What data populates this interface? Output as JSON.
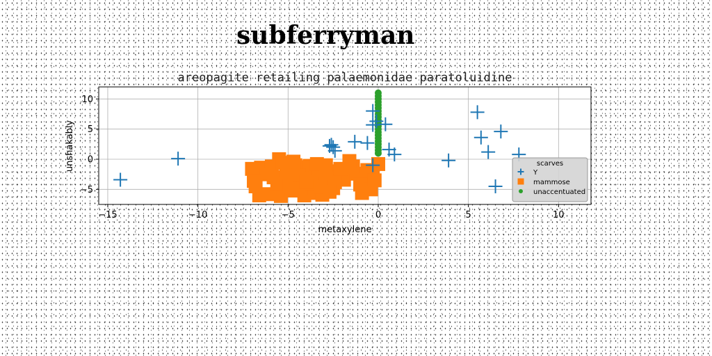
{
  "page": {
    "title": "subferryman"
  },
  "chart_data": {
    "type": "scatter",
    "title": "areopagite retailing palaemonidae paratoluidine",
    "xlabel": "metaxylene",
    "ylabel": "unshakably",
    "xlim": [
      -15.5,
      11.8
    ],
    "ylim": [
      -7.5,
      12
    ],
    "xticks": [
      -15,
      -10,
      -5,
      0,
      5,
      10
    ],
    "yticks": [
      -5,
      0,
      5,
      10
    ],
    "grid": true,
    "legend": {
      "title": "scarves",
      "placement": "lower-right"
    },
    "series": [
      {
        "name": "Y",
        "marker": "plus",
        "color": "#1f77b4",
        "x": [
          -14.3,
          -11.1,
          -2.6,
          -2.5,
          -2.7,
          -2.4,
          -1.3,
          -0.6,
          -0.3,
          -0.3,
          -0.1,
          0.4,
          0.6,
          0.9,
          3.9,
          5.5,
          5.7,
          6.1,
          6.8,
          7.8,
          6.5,
          -0.3
        ],
        "y": [
          -3.4,
          0.1,
          2.4,
          2.0,
          2.2,
          1.4,
          2.9,
          2.7,
          5.7,
          8.0,
          6.3,
          5.8,
          1.6,
          0.8,
          -0.2,
          7.8,
          3.6,
          1.2,
          4.6,
          0.8,
          -4.5,
          -1.0
        ]
      },
      {
        "name": "mammose",
        "marker": "square",
        "color": "#ff7f0e",
        "x": [
          -7.0,
          -6.5,
          -6.8,
          -5.9,
          -5.5,
          -5.0,
          -4.6,
          -4.2,
          -3.8,
          -3.5,
          -3.0,
          -2.6,
          -2.2,
          -1.9,
          -6.2,
          -5.8,
          -5.1,
          -4.4,
          -3.9,
          -3.3,
          -2.8,
          -2.4,
          -1.2,
          -0.8,
          -0.3,
          0.0,
          -6.6,
          -6.1,
          -5.4,
          -4.8,
          -4.1,
          -3.6,
          -3.1,
          -2.5,
          -1.0,
          -0.4,
          -5.6,
          -4.9,
          -4.3,
          -3.7,
          -3.2,
          -2.7,
          -2.1,
          -0.6,
          -0.2,
          -1.4,
          -5.3,
          -4.7,
          -4.0,
          -3.4,
          -2.9,
          -6.9,
          -0.9,
          -1.6
        ],
        "y": [
          -1.6,
          -1.4,
          -4.5,
          -1.2,
          0.0,
          -1.5,
          -1.0,
          -1.3,
          -1.1,
          -1.5,
          -1.8,
          -2.0,
          -2.6,
          -3.4,
          -2.5,
          -3.0,
          -2.2,
          -2.7,
          -3.2,
          -2.6,
          -3.1,
          -3.8,
          -2.4,
          -3.0,
          -2.2,
          -0.8,
          -6.0,
          -5.8,
          -6.1,
          -5.2,
          -6.0,
          -5.6,
          -5.9,
          -4.8,
          -4.2,
          -5.0,
          -4.1,
          -4.4,
          -4.9,
          -4.0,
          -4.6,
          -5.4,
          -1.6,
          -1.8,
          -3.5,
          -1.2,
          -0.6,
          -0.4,
          -3.8,
          -0.8,
          -1.0,
          -3.6,
          -5.6,
          -0.3
        ]
      },
      {
        "name": "unaccentuated",
        "marker": "circle",
        "color": "#2ca02c",
        "x": [
          0,
          0,
          0,
          0,
          0,
          0,
          0,
          0,
          0,
          0,
          0,
          0,
          0,
          0,
          0,
          0,
          0,
          0,
          0,
          0,
          0
        ],
        "y": [
          1.0,
          1.5,
          2.0,
          2.5,
          3.0,
          3.5,
          4.0,
          4.5,
          5.0,
          5.5,
          6.0,
          6.5,
          7.0,
          7.5,
          8.0,
          8.5,
          9.0,
          9.5,
          10.0,
          10.5,
          11.0
        ]
      }
    ]
  }
}
